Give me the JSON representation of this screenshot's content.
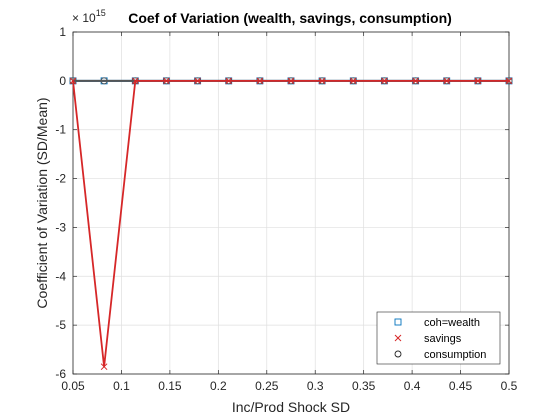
{
  "chart_data": {
    "type": "line",
    "title": "Coef of Variation (wealth, savings, consumption)",
    "xlabel": "Inc/Prod Shock SD",
    "ylabel": "Coefficient of Variation (SD/Mean)",
    "y_exponent_base": "× 10",
    "y_exponent_power": "15",
    "xlim": [
      0.05,
      0.5
    ],
    "ylim": [
      -6,
      1
    ],
    "xticks": [
      0.05,
      0.1,
      0.15,
      0.2,
      0.25,
      0.3,
      0.35,
      0.4,
      0.45,
      0.5
    ],
    "xtick_labels": [
      "0.05",
      "0.1",
      "0.15",
      "0.2",
      "0.25",
      "0.3",
      "0.35",
      "0.4",
      "0.45",
      "0.5"
    ],
    "yticks": [
      -6,
      -5,
      -4,
      -3,
      -2,
      -1,
      0,
      1
    ],
    "ytick_labels": [
      "-6",
      "-5",
      "-4",
      "-3",
      "-2",
      "-1",
      "0",
      "1"
    ],
    "grid": true,
    "legend_location": "bottom-right",
    "x": [
      0.05,
      0.0821,
      0.1143,
      0.1464,
      0.1786,
      0.2107,
      0.2429,
      0.275,
      0.3071,
      0.3393,
      0.3714,
      0.4036,
      0.4357,
      0.4679,
      0.5
    ],
    "series": [
      {
        "name": "coh=wealth",
        "marker": "square",
        "color": "#0072BD",
        "values": [
          0,
          0,
          0,
          0,
          0,
          0,
          0,
          0,
          0,
          0,
          0,
          0,
          0,
          0,
          0
        ]
      },
      {
        "name": "savings",
        "marker": "x",
        "color": "#D62728",
        "values": [
          0,
          -5.85,
          0,
          0,
          0,
          0,
          0,
          0,
          0,
          0,
          0,
          0,
          0,
          0,
          0
        ]
      },
      {
        "name": "consumption",
        "marker": "circle",
        "color": "#555555",
        "values": [
          0,
          0,
          0,
          0,
          0,
          0,
          0,
          0,
          0,
          0,
          0,
          0,
          0,
          0,
          0
        ]
      }
    ]
  }
}
